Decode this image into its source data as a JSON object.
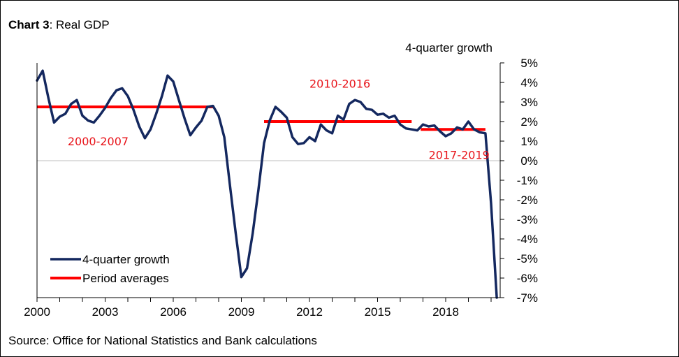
{
  "title": {
    "bold": "Chart 3",
    "rest": ": Real GDP"
  },
  "source": "Source: Office for National Statistics and Bank calculations",
  "colors": {
    "growth_line": "#14285f",
    "averages": "#ff0000",
    "annotations": "#e8141a",
    "zero_line": "#bfbfbf"
  },
  "chart_data": {
    "type": "line",
    "ylabel": "4-quarter growth",
    "xlim": [
      2000,
      2020.25
    ],
    "ylim": [
      -7,
      5
    ],
    "x_ticks": [
      2000,
      2003,
      2006,
      2009,
      2012,
      2015,
      2018
    ],
    "x_tick_labels": [
      "2000",
      "2003",
      "2006",
      "2009",
      "2012",
      "2015",
      "2018"
    ],
    "y_ticks": [
      5,
      4,
      3,
      2,
      1,
      0,
      -1,
      -2,
      -3,
      -4,
      -5,
      -6,
      -7
    ],
    "y_tick_labels": [
      "5%",
      "4%",
      "3%",
      "2%",
      "1%",
      "0%",
      "-1%",
      "-2%",
      "-3%",
      "-4%",
      "-5%",
      "-6%",
      "-7%"
    ],
    "legend": {
      "position": "bottom-left",
      "entries": [
        "4-quarter growth",
        "Period averages"
      ]
    },
    "series": [
      {
        "name": "4-quarter growth",
        "x": [
          2000.0,
          2000.25,
          2000.5,
          2000.75,
          2001.0,
          2001.25,
          2001.5,
          2001.75,
          2002.0,
          2002.25,
          2002.5,
          2002.75,
          2003.0,
          2003.25,
          2003.5,
          2003.75,
          2004.0,
          2004.25,
          2004.5,
          2004.75,
          2005.0,
          2005.25,
          2005.5,
          2005.75,
          2006.0,
          2006.25,
          2006.5,
          2006.75,
          2007.0,
          2007.25,
          2007.5,
          2007.75,
          2008.0,
          2008.25,
          2008.5,
          2008.75,
          2009.0,
          2009.25,
          2009.5,
          2009.75,
          2010.0,
          2010.25,
          2010.5,
          2010.75,
          2011.0,
          2011.25,
          2011.5,
          2011.75,
          2012.0,
          2012.25,
          2012.5,
          2012.75,
          2013.0,
          2013.25,
          2013.5,
          2013.75,
          2014.0,
          2014.25,
          2014.5,
          2014.75,
          2015.0,
          2015.25,
          2015.5,
          2015.75,
          2016.0,
          2016.25,
          2016.5,
          2016.75,
          2017.0,
          2017.25,
          2017.5,
          2017.75,
          2018.0,
          2018.25,
          2018.5,
          2018.75,
          2019.0,
          2019.25,
          2019.5,
          2019.75,
          2020.0,
          2020.25
        ],
        "values": [
          4.1,
          4.6,
          3.2,
          1.95,
          2.25,
          2.4,
          2.9,
          3.1,
          2.3,
          2.05,
          1.95,
          2.3,
          2.7,
          3.2,
          3.6,
          3.7,
          3.3,
          2.6,
          1.75,
          1.15,
          1.6,
          2.4,
          3.3,
          4.35,
          4.05,
          3.1,
          2.15,
          1.3,
          1.7,
          2.05,
          2.75,
          2.8,
          2.3,
          1.2,
          -1.3,
          -3.7,
          -5.95,
          -5.5,
          -3.7,
          -1.5,
          0.9,
          2.05,
          2.75,
          2.5,
          2.2,
          1.2,
          0.85,
          0.9,
          1.2,
          1.0,
          1.85,
          1.55,
          1.4,
          2.3,
          2.1,
          2.9,
          3.1,
          3.0,
          2.65,
          2.6,
          2.35,
          2.4,
          2.2,
          2.3,
          1.85,
          1.65,
          1.6,
          1.55,
          1.85,
          1.75,
          1.8,
          1.5,
          1.25,
          1.4,
          1.7,
          1.6,
          2.0,
          1.6,
          1.45,
          1.4,
          -2.2,
          -7.0
        ]
      }
    ],
    "period_averages": [
      {
        "label": "2000-2007",
        "x_start": 2000.0,
        "x_end": 2007.75,
        "value": 2.75
      },
      {
        "label": "2010-2016",
        "x_start": 2010.0,
        "x_end": 2016.5,
        "value": 2.0
      },
      {
        "label": "2017-2019",
        "x_start": 2016.9,
        "x_end": 2019.75,
        "value": 1.6
      }
    ],
    "annotations": [
      {
        "text": "2000-2007",
        "x": 2001.35,
        "y": 1.0
      },
      {
        "text": "2010-2016",
        "x": 2012.0,
        "y": 3.95
      },
      {
        "text": "2017-2019",
        "x": 2017.25,
        "y": 0.3
      }
    ]
  }
}
